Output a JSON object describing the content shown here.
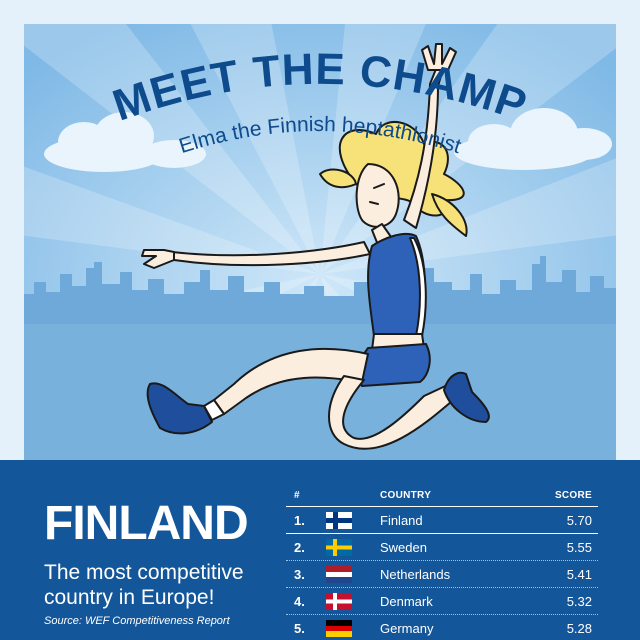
{
  "hero": {
    "title": "MEET THE CHAMP",
    "subtitle": "Elma the Finnish heptathlonist",
    "illustration": "jumping-athlete-illustration",
    "colors": {
      "sky": "#8ec3ea",
      "rays": "#a6d1f1",
      "skyline": "#6aa5d6",
      "title": "#0e4b8c"
    }
  },
  "panel": {
    "country": "FINLAND",
    "tagline": "The most competitive country in Europe!",
    "source": "Source: WEF Competitiveness Report",
    "background": "#14569a"
  },
  "ranking": {
    "headers": {
      "rank": "#",
      "country": "COUNTRY",
      "score": "SCORE"
    },
    "rows": [
      {
        "rank": "1.",
        "flag": "finland-flag-icon",
        "country": "Finland",
        "score": "5.70"
      },
      {
        "rank": "2.",
        "flag": "sweden-flag-icon",
        "country": "Sweden",
        "score": "5.55"
      },
      {
        "rank": "3.",
        "flag": "netherlands-flag-icon",
        "country": "Netherlands",
        "score": "5.41"
      },
      {
        "rank": "4.",
        "flag": "denmark-flag-icon",
        "country": "Denmark",
        "score": "5.32"
      },
      {
        "rank": "5.",
        "flag": "germany-flag-icon",
        "country": "Germany",
        "score": "5.28"
      }
    ]
  }
}
